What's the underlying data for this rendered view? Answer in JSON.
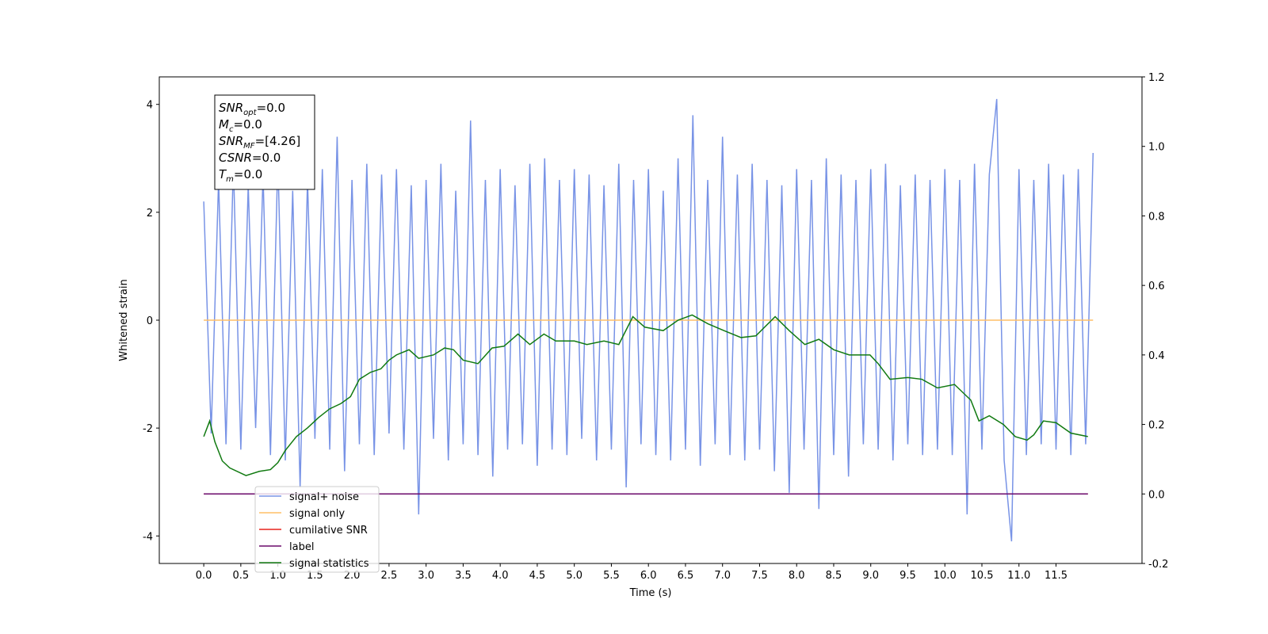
{
  "chart_data": {
    "type": "line",
    "xlabel": "Time (s)",
    "ylabel": "Whitened strain",
    "xlim": [
      -0.6,
      12.66
    ],
    "xticks": [
      {
        "value": 0,
        "label": "0.0"
      },
      0.5,
      {
        "value": 1,
        "label": "1.0"
      },
      1.5,
      {
        "value": 2,
        "label": "2.0"
      },
      2.5,
      {
        "value": 3,
        "label": "3.0"
      },
      3.5,
      {
        "value": 4,
        "label": "4.0"
      },
      4.5,
      {
        "value": 5,
        "label": "5.0"
      },
      5.5,
      {
        "value": 6,
        "label": "6.0"
      },
      6.5,
      {
        "value": 7,
        "label": "7.0"
      },
      7.5,
      {
        "value": 8,
        "label": "8.0"
      },
      8.5,
      {
        "value": 9,
        "label": "9.0"
      },
      9.5,
      {
        "value": 10,
        "label": "10.0"
      },
      10.5,
      {
        "value": 11,
        "label": "11.0"
      },
      11.5
    ],
    "ylim": [
      -4.51,
      4.51
    ],
    "yticks": [
      -4,
      -2,
      0,
      2,
      4
    ],
    "y2lim": [
      -0.2,
      1.2
    ],
    "y2ticks": [
      -0.2,
      {
        "value": 0,
        "label": "0.0"
      },
      0.2,
      0.4,
      0.6,
      0.8,
      {
        "value": 1,
        "label": "1.0"
      },
      1.2
    ],
    "annotation": [
      {
        "text": "SNR",
        "sub": "opt",
        "rest": "=0.0"
      },
      {
        "text": "M",
        "sub": "c",
        "rest": "=0.0"
      },
      {
        "text": "SNR",
        "sub": "MF",
        "rest": "=[4.26]"
      },
      {
        "text": "CSNR",
        "sub": null,
        "rest": "=0.0"
      },
      {
        "text": "T",
        "sub": "m",
        "rest": "=0.0"
      }
    ],
    "legend": "lower left",
    "series": [
      {
        "name": "signal+ noise",
        "color": "#7893e6",
        "axis": "y",
        "x": [
          0,
          0.1,
          0.2,
          0.3,
          0.4,
          0.5,
          0.6,
          0.7,
          0.8,
          0.9,
          1,
          1.1,
          1.2,
          1.3,
          1.4,
          1.5,
          1.6,
          1.7,
          1.8,
          1.9,
          2,
          2.1,
          2.2,
          2.3,
          2.4,
          2.5,
          2.6,
          2.7,
          2.8,
          2.9,
          3,
          3.1,
          3.2,
          3.3,
          3.4,
          3.5,
          3.6,
          3.7,
          3.8,
          3.9,
          4,
          4.1,
          4.2,
          4.3,
          4.4,
          4.5,
          4.6,
          4.7,
          4.8,
          4.9,
          5,
          5.1,
          5.2,
          5.3,
          5.4,
          5.5,
          5.6,
          5.7,
          5.8,
          5.9,
          6,
          6.1,
          6.2,
          6.3,
          6.4,
          6.5,
          6.6,
          6.7,
          6.8,
          6.9,
          7,
          7.1,
          7.2,
          7.3,
          7.4,
          7.5,
          7.6,
          7.7,
          7.8,
          7.9,
          8,
          8.1,
          8.2,
          8.3,
          8.4,
          8.5,
          8.6,
          8.7,
          8.8,
          8.9,
          9,
          9.1,
          9.2,
          9.3,
          9.4,
          9.5,
          9.6,
          9.7,
          9.8,
          9.9,
          10,
          10.1,
          10.2,
          10.3,
          10.4,
          10.5,
          10.6,
          10.7,
          10.8,
          10.9,
          11,
          11.1,
          11.2,
          11.3,
          11.4,
          11.5,
          11.6,
          11.7,
          11.8,
          11.9,
          12
        ],
        "values": [
          2.2,
          -2.1,
          2.6,
          -2.3,
          2.9,
          -2.4,
          2.5,
          -2.0,
          2.7,
          -2.5,
          3.0,
          -2.6,
          2.4,
          -3.1,
          2.6,
          -2.2,
          2.8,
          -2.4,
          3.4,
          -2.8,
          2.6,
          -2.3,
          2.9,
          -2.5,
          2.7,
          -2.1,
          2.8,
          -2.4,
          2.5,
          -3.6,
          2.6,
          -2.2,
          2.9,
          -2.6,
          2.4,
          -2.3,
          3.7,
          -2.5,
          2.6,
          -2.9,
          2.8,
          -2.4,
          2.5,
          -2.3,
          2.9,
          -2.7,
          3.0,
          -2.4,
          2.6,
          -2.5,
          2.8,
          -2.2,
          2.7,
          -2.6,
          2.5,
          -2.4,
          2.9,
          -3.1,
          2.6,
          -2.3,
          2.8,
          -2.5,
          2.4,
          -2.6,
          3.0,
          -2.4,
          3.8,
          -2.7,
          2.6,
          -2.3,
          3.4,
          -2.5,
          2.7,
          -2.6,
          2.9,
          -2.4,
          2.6,
          -2.8,
          2.5,
          -3.2,
          2.8,
          -2.4,
          2.6,
          -3.5,
          3.0,
          -2.5,
          2.7,
          -2.9,
          2.6,
          -2.3,
          2.8,
          -2.4,
          2.9,
          -2.6,
          2.5,
          -2.3,
          2.7,
          -2.5,
          2.6,
          -2.4,
          2.8,
          -2.5,
          2.6,
          -3.6,
          2.9,
          -2.4,
          2.7,
          4.1,
          -2.6,
          -4.1,
          2.8,
          -2.5,
          2.6,
          -2.3,
          2.9,
          -2.4,
          2.7,
          -2.5,
          2.8,
          -2.3,
          3.1
        ]
      },
      {
        "name": "signal only",
        "color": "#ffbf66",
        "axis": "y",
        "x": [
          0,
          12
        ],
        "values": [
          0,
          0
        ]
      },
      {
        "name": "cumilative SNR",
        "color": "#e8241c",
        "axis": "y2",
        "x": [
          0,
          11.93
        ],
        "values": [
          0,
          0
        ]
      },
      {
        "name": "label",
        "color": "#6b0a6b",
        "axis": "y2",
        "x": [
          0,
          11.93
        ],
        "values": [
          0,
          0
        ]
      },
      {
        "name": "signal statistics",
        "color": "#117a11",
        "axis": "y2",
        "x": [
          0,
          0.08,
          0.15,
          0.25,
          0.35,
          0.57,
          0.75,
          0.9,
          1.0,
          1.1,
          1.25,
          1.4,
          1.55,
          1.7,
          1.85,
          1.98,
          2.1,
          2.25,
          2.39,
          2.5,
          2.6,
          2.77,
          2.9,
          3.1,
          3.25,
          3.37,
          3.5,
          3.7,
          3.89,
          4.05,
          4.24,
          4.4,
          4.59,
          4.75,
          5.0,
          5.17,
          5.4,
          5.6,
          5.79,
          5.95,
          6.2,
          6.4,
          6.59,
          6.8,
          7.02,
          7.25,
          7.45,
          7.71,
          7.9,
          8.11,
          8.3,
          8.5,
          8.71,
          8.99,
          9.1,
          9.26,
          9.5,
          9.69,
          9.9,
          10.13,
          10.35,
          10.46,
          10.6,
          10.79,
          10.95,
          11.11,
          11.2,
          11.33,
          11.5,
          11.7,
          11.93
        ],
        "values": [
          0.165,
          0.21,
          0.15,
          0.095,
          0.075,
          0.053,
          0.065,
          0.07,
          0.09,
          0.125,
          0.165,
          0.19,
          0.22,
          0.245,
          0.26,
          0.28,
          0.33,
          0.35,
          0.36,
          0.385,
          0.4,
          0.415,
          0.39,
          0.4,
          0.42,
          0.415,
          0.385,
          0.375,
          0.42,
          0.425,
          0.46,
          0.43,
          0.46,
          0.44,
          0.44,
          0.43,
          0.44,
          0.43,
          0.51,
          0.48,
          0.47,
          0.5,
          0.515,
          0.49,
          0.47,
          0.45,
          0.455,
          0.51,
          0.47,
          0.43,
          0.445,
          0.415,
          0.4,
          0.4,
          0.375,
          0.33,
          0.335,
          0.33,
          0.305,
          0.315,
          0.27,
          0.21,
          0.225,
          0.2,
          0.165,
          0.155,
          0.17,
          0.21,
          0.205,
          0.175,
          0.165
        ]
      }
    ]
  }
}
